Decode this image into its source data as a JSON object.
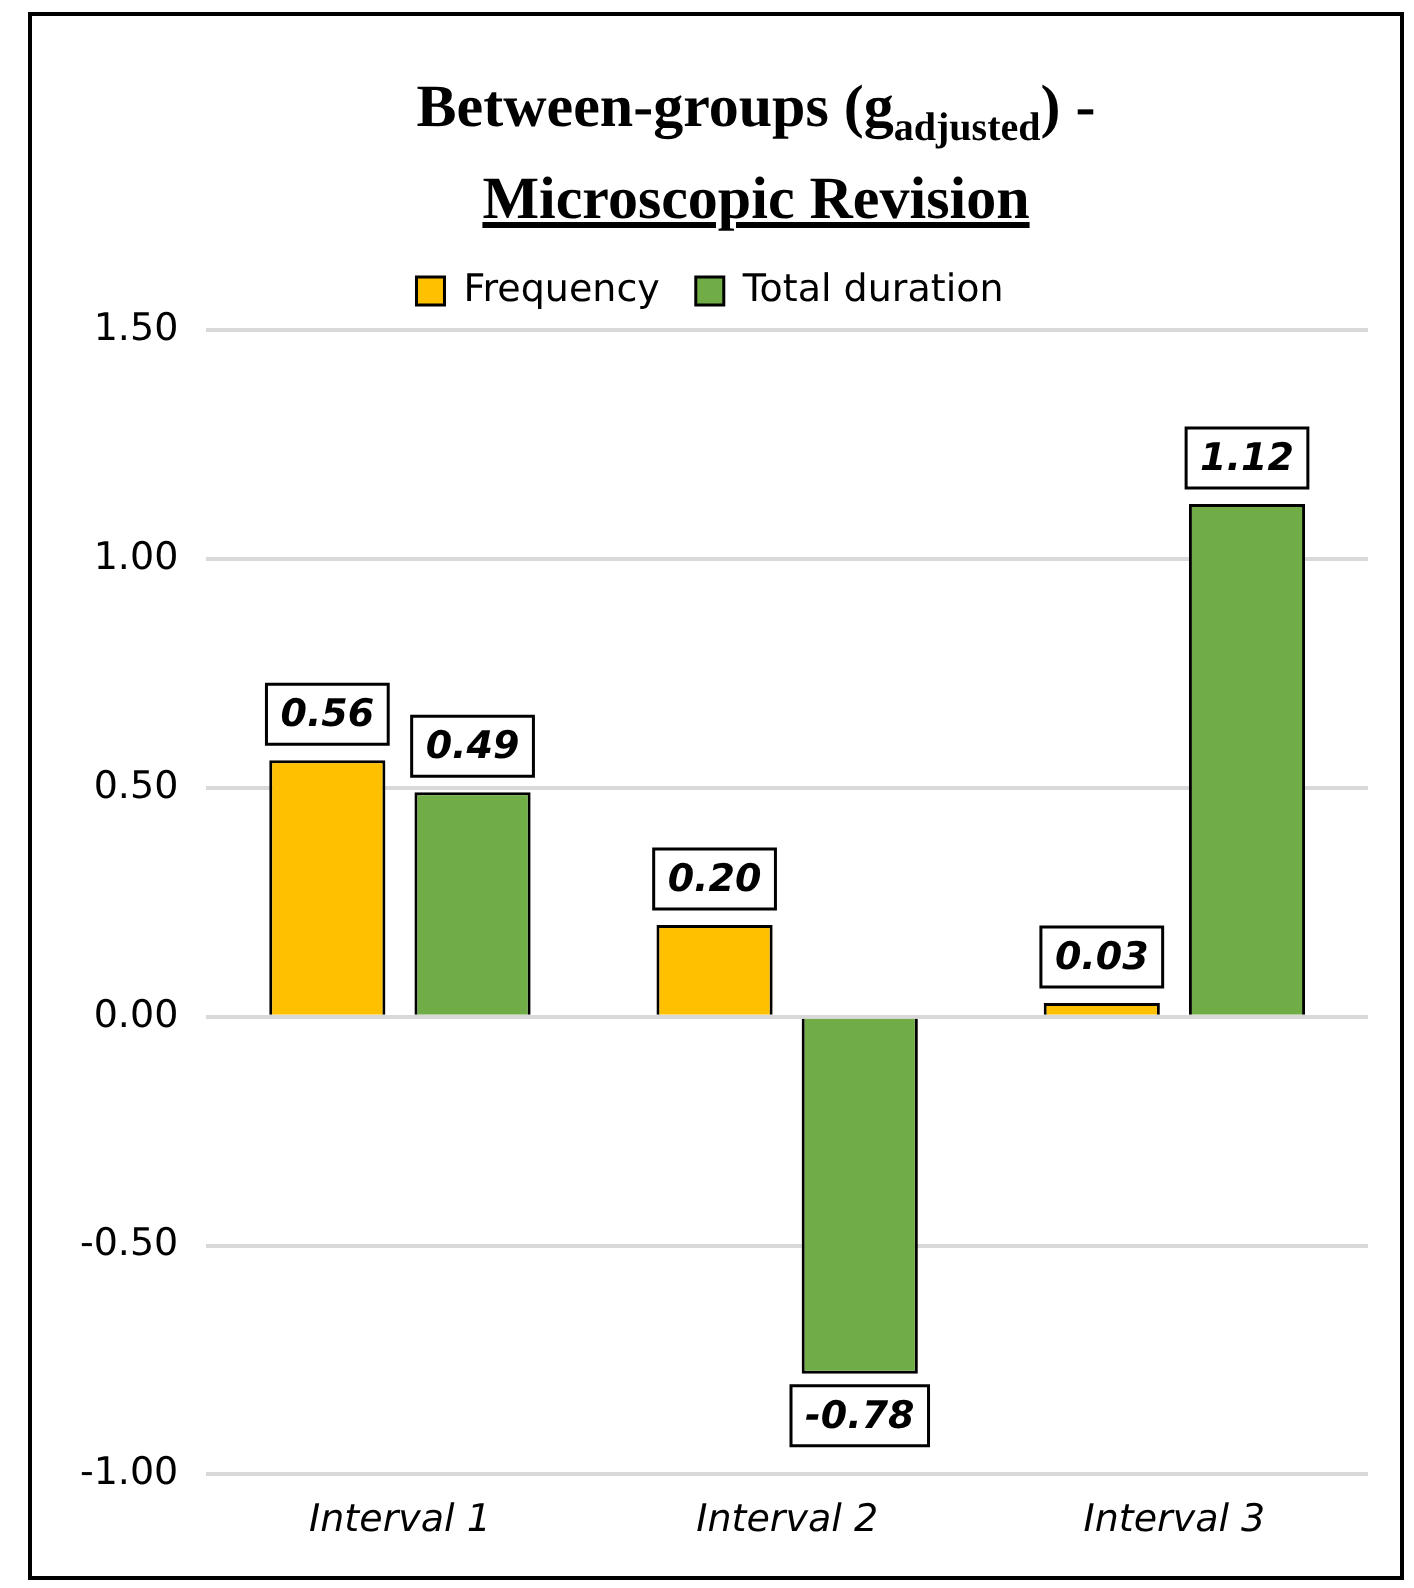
{
  "chart_data": {
    "type": "bar",
    "title": "Between-groups (g$_{adjusted}$) -",
    "subtitle": "Microscopic Revision",
    "categories": [
      "Interval 1",
      "Interval 2",
      "Interval 3"
    ],
    "series": [
      {
        "name": "Frequency",
        "color": "#ffc000",
        "values": [
          0.56,
          0.2,
          0.03
        ],
        "value_labels": [
          "0.56",
          "0.20",
          "0.03"
        ]
      },
      {
        "name": "Total duration",
        "color": "#70ad47",
        "values": [
          0.49,
          -0.78,
          1.12
        ],
        "value_labels": [
          "0.49",
          "-0.78",
          "1.12"
        ]
      }
    ],
    "ylim": [
      -1,
      1.5
    ],
    "yticks": [
      {
        "value": -1,
        "label": "-1.00"
      },
      {
        "value": -0.5,
        "label": "-0.50"
      },
      {
        "value": 0,
        "label": "0.00"
      },
      {
        "value": 0.5,
        "label": "0.50"
      },
      {
        "value": 1,
        "label": "1.00"
      },
      {
        "value": 1.5,
        "label": "1.50"
      }
    ],
    "grid": "y",
    "legend": "top"
  }
}
